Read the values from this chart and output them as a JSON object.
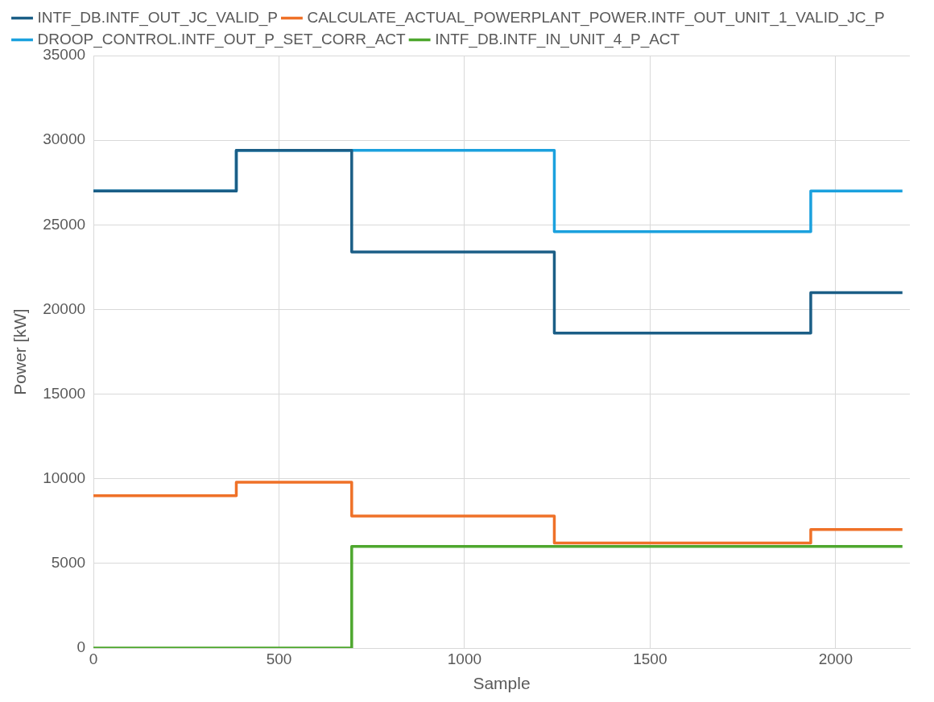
{
  "chart_data": {
    "type": "step",
    "xlabel": "Sample",
    "ylabel": "Power [kW]",
    "x": [
      0,
      385,
      696,
      1242,
      1933,
      2180
    ],
    "series": [
      {
        "name": "INTF_DB.INTF_OUT_JC_VALID_P",
        "color": "#1b5e86",
        "values": [
          27000,
          29400,
          23400,
          18600,
          21000,
          21000
        ]
      },
      {
        "name": "CALCULATE_ACTUAL_POWERPLANT_POWER.INTF_OUT_UNIT_1_VALID_JC_P",
        "color": "#ef7128",
        "values": [
          9000,
          9800,
          7800,
          6200,
          7000,
          7000
        ]
      },
      {
        "name": "DROOP_CONTROL.INTF_OUT_P_SET_CORR_ACT",
        "color": "#1ba1de",
        "values": [
          27000,
          29400,
          29400,
          24600,
          27000,
          27000
        ]
      },
      {
        "name": "INTF_DB.INTF_IN_UNIT_4_P_ACT",
        "color": "#4ea72e",
        "values": [
          0,
          0,
          6000,
          6000,
          6000,
          6000
        ]
      }
    ],
    "xlim": [
      0,
      2200
    ],
    "xticks": [
      0,
      500,
      1000,
      1500,
      2000
    ],
    "ylim": [
      0,
      35000
    ],
    "yticks": [
      0,
      5000,
      10000,
      15000,
      20000,
      25000,
      30000,
      35000
    ],
    "grid": true,
    "legend": "top left",
    "marker": "none",
    "line_style": "solid"
  }
}
